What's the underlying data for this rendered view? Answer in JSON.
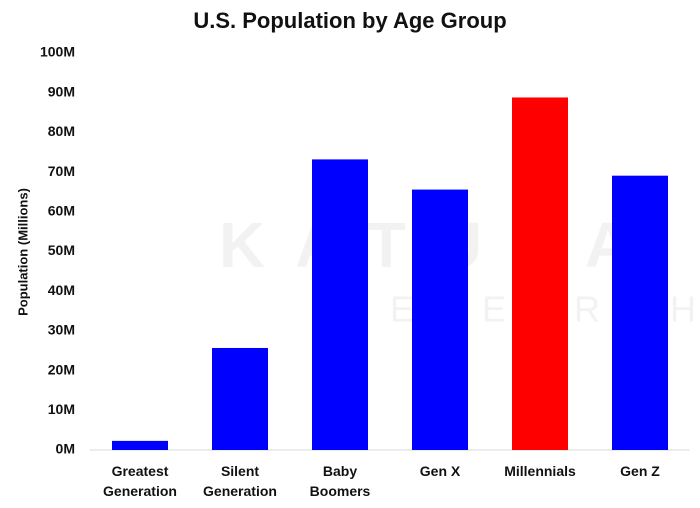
{
  "chart_data": {
    "type": "bar",
    "title": "U.S. Population by Age Group",
    "y_label": "Population (Millions)",
    "watermark": [
      "KATUSA",
      "RESEARCH"
    ],
    "categories": [
      "Greatest Generation",
      "Silent Generation",
      "Baby Boomers",
      "Gen X",
      "Millennials",
      "Gen Z"
    ],
    "values": [
      2.3,
      25.7,
      73.2,
      65.6,
      88.8,
      69.1
    ],
    "colors": [
      "#0000ff",
      "#0000ff",
      "#0000ff",
      "#0000ff",
      "#ff0000",
      "#0000ff"
    ],
    "ylim": [
      0,
      100
    ],
    "yticks": [
      {
        "value": 0,
        "label": "0M"
      },
      {
        "value": 10,
        "label": "10M"
      },
      {
        "value": 20,
        "label": "20M"
      },
      {
        "value": 30,
        "label": "30M"
      },
      {
        "value": 40,
        "label": "40M"
      },
      {
        "value": 50,
        "label": "50M"
      },
      {
        "value": 60,
        "label": "60M"
      },
      {
        "value": 70,
        "label": "70M"
      },
      {
        "value": 80,
        "label": "80M"
      },
      {
        "value": 90,
        "label": "90M"
      },
      {
        "value": 100,
        "label": "100M"
      }
    ],
    "grid": false
  }
}
